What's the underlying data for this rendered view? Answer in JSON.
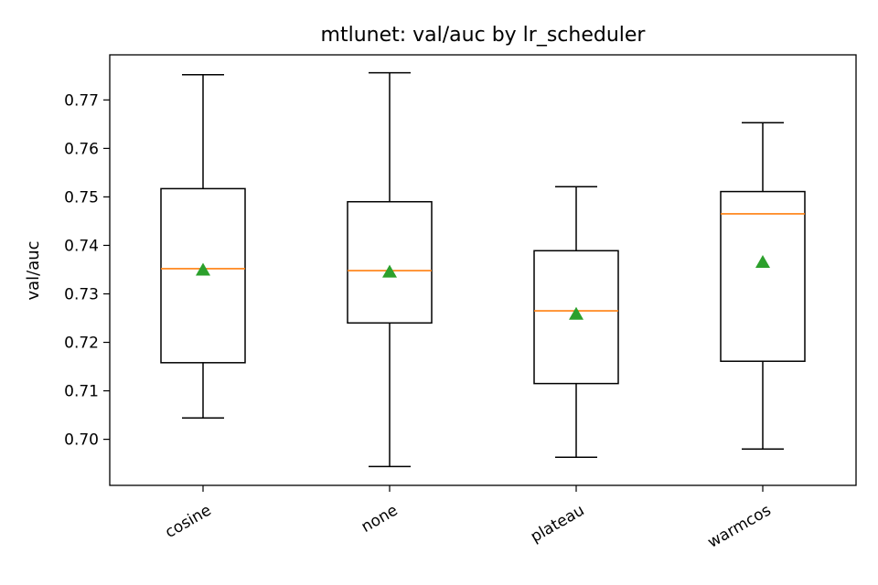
{
  "chart_data": {
    "type": "box",
    "title": "mtlunet: val/auc by lr_scheduler",
    "xlabel": "",
    "ylabel": "val/auc",
    "ylim": [
      0.6905,
      0.7793
    ],
    "yticks": [
      0.7,
      0.71,
      0.72,
      0.73,
      0.74,
      0.75,
      0.76,
      0.77
    ],
    "ytick_labels": [
      "0.70",
      "0.71",
      "0.72",
      "0.73",
      "0.74",
      "0.75",
      "0.76",
      "0.77"
    ],
    "categories": [
      "cosine",
      "none",
      "plateau",
      "warmcos"
    ],
    "boxes": [
      {
        "whisker_low": 0.7044,
        "q1": 0.7158,
        "median": 0.7352,
        "q3": 0.7517,
        "whisker_high": 0.7752,
        "mean": 0.7349
      },
      {
        "whisker_low": 0.6944,
        "q1": 0.724,
        "median": 0.7348,
        "q3": 0.749,
        "whisker_high": 0.7756,
        "mean": 0.7345
      },
      {
        "whisker_low": 0.6963,
        "q1": 0.7115,
        "median": 0.7265,
        "q3": 0.7389,
        "whisker_high": 0.7521,
        "mean": 0.7258
      },
      {
        "whisker_low": 0.698,
        "q1": 0.7161,
        "median": 0.7465,
        "q3": 0.7511,
        "whisker_high": 0.7653,
        "mean": 0.7365
      }
    ],
    "colors": {
      "box": "#000000",
      "median": "#ff7f0e",
      "mean": "#2ca02c"
    },
    "grid": false,
    "legend": "none"
  }
}
